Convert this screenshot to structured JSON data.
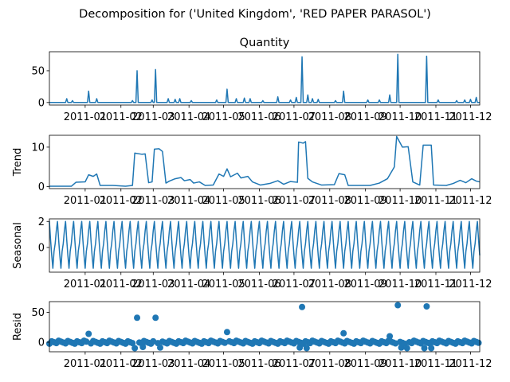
{
  "figure": {
    "suptitle": "Decomposition for ('United Kingdom', 'RED PAPER PARASOL')"
  },
  "colors": {
    "line": "#1f77b4",
    "axis": "#000000"
  },
  "chart_data": [
    {
      "type": "line",
      "name": "observed",
      "title": "Quantity",
      "ylabel": "",
      "x_range": [
        "2010-12-01",
        "2011-12-09"
      ],
      "ylim": [
        -4,
        80
      ],
      "yticks": [
        0,
        50
      ],
      "xticks": [
        "2011-01",
        "2011-02",
        "2011-03",
        "2011-04",
        "2011-05",
        "2011-06",
        "2011-07",
        "2011-08",
        "2011-09",
        "2011-10",
        "2011-11",
        "2011-12"
      ],
      "baseline": 0,
      "spikes": [
        {
          "x": "2010-12-16",
          "y": 6
        },
        {
          "x": "2010-12-21",
          "y": 3
        },
        {
          "x": "2011-01-04",
          "y": 18
        },
        {
          "x": "2011-01-11",
          "y": 6
        },
        {
          "x": "2011-02-11",
          "y": 3
        },
        {
          "x": "2011-02-15",
          "y": 50
        },
        {
          "x": "2011-02-28",
          "y": 4
        },
        {
          "x": "2011-03-03",
          "y": 52
        },
        {
          "x": "2011-03-14",
          "y": 6
        },
        {
          "x": "2011-03-20",
          "y": 5
        },
        {
          "x": "2011-03-24",
          "y": 6
        },
        {
          "x": "2011-04-03",
          "y": 3
        },
        {
          "x": "2011-04-25",
          "y": 4
        },
        {
          "x": "2011-05-04",
          "y": 21
        },
        {
          "x": "2011-05-12",
          "y": 6
        },
        {
          "x": "2011-05-19",
          "y": 7
        },
        {
          "x": "2011-05-24",
          "y": 6
        },
        {
          "x": "2011-06-04",
          "y": 3
        },
        {
          "x": "2011-06-17",
          "y": 9
        },
        {
          "x": "2011-06-28",
          "y": 4
        },
        {
          "x": "2011-07-03",
          "y": 8
        },
        {
          "x": "2011-07-08",
          "y": 72
        },
        {
          "x": "2011-07-13",
          "y": 12
        },
        {
          "x": "2011-07-17",
          "y": 6
        },
        {
          "x": "2011-07-22",
          "y": 5
        },
        {
          "x": "2011-08-06",
          "y": 3
        },
        {
          "x": "2011-08-13",
          "y": 18
        },
        {
          "x": "2011-09-03",
          "y": 4
        },
        {
          "x": "2011-09-13",
          "y": 4
        },
        {
          "x": "2011-09-22",
          "y": 12
        },
        {
          "x": "2011-09-29",
          "y": 76
        },
        {
          "x": "2011-10-24",
          "y": 73
        },
        {
          "x": "2011-11-03",
          "y": 4
        },
        {
          "x": "2011-11-19",
          "y": 3
        },
        {
          "x": "2011-11-26",
          "y": 4
        },
        {
          "x": "2011-12-01",
          "y": 5
        },
        {
          "x": "2011-12-06",
          "y": 8
        }
      ]
    },
    {
      "type": "line",
      "name": "trend",
      "title": "",
      "ylabel": "Trend",
      "x_range": [
        "2010-12-01",
        "2011-12-09"
      ],
      "ylim": [
        -0.5,
        13
      ],
      "yticks": [
        0,
        10
      ],
      "xticks": [
        "2011-01",
        "2011-02",
        "2011-03",
        "2011-04",
        "2011-05",
        "2011-06",
        "2011-07",
        "2011-08",
        "2011-09",
        "2011-10",
        "2011-11",
        "2011-12"
      ],
      "points": [
        {
          "x": "2010-12-01",
          "y": 0.1
        },
        {
          "x": "2010-12-20",
          "y": 0.1
        },
        {
          "x": "2010-12-24",
          "y": 1.1
        },
        {
          "x": "2011-01-01",
          "y": 1.2
        },
        {
          "x": "2011-01-04",
          "y": 3.0
        },
        {
          "x": "2011-01-08",
          "y": 2.6
        },
        {
          "x": "2011-01-11",
          "y": 3.2
        },
        {
          "x": "2011-01-14",
          "y": 0.3
        },
        {
          "x": "2011-01-25",
          "y": 0.3
        },
        {
          "x": "2011-02-05",
          "y": 0.1
        },
        {
          "x": "2011-02-11",
          "y": 0.3
        },
        {
          "x": "2011-02-13",
          "y": 8.5
        },
        {
          "x": "2011-02-19",
          "y": 8.2
        },
        {
          "x": "2011-02-22",
          "y": 8.3
        },
        {
          "x": "2011-02-25",
          "y": 1.0
        },
        {
          "x": "2011-02-28",
          "y": 1.2
        },
        {
          "x": "2011-03-02",
          "y": 9.5
        },
        {
          "x": "2011-03-06",
          "y": 9.6
        },
        {
          "x": "2011-03-09",
          "y": 8.9
        },
        {
          "x": "2011-03-12",
          "y": 0.9
        },
        {
          "x": "2011-03-15",
          "y": 1.4
        },
        {
          "x": "2011-03-20",
          "y": 2.0
        },
        {
          "x": "2011-03-25",
          "y": 2.3
        },
        {
          "x": "2011-03-28",
          "y": 1.5
        },
        {
          "x": "2011-04-02",
          "y": 1.8
        },
        {
          "x": "2011-04-05",
          "y": 0.9
        },
        {
          "x": "2011-04-10",
          "y": 1.2
        },
        {
          "x": "2011-04-15",
          "y": 0.3
        },
        {
          "x": "2011-04-22",
          "y": 0.4
        },
        {
          "x": "2011-04-27",
          "y": 3.2
        },
        {
          "x": "2011-05-01",
          "y": 2.6
        },
        {
          "x": "2011-05-04",
          "y": 4.5
        },
        {
          "x": "2011-05-07",
          "y": 2.5
        },
        {
          "x": "2011-05-13",
          "y": 3.4
        },
        {
          "x": "2011-05-16",
          "y": 2.2
        },
        {
          "x": "2011-05-22",
          "y": 2.6
        },
        {
          "x": "2011-05-26",
          "y": 1.2
        },
        {
          "x": "2011-06-02",
          "y": 0.4
        },
        {
          "x": "2011-06-10",
          "y": 0.8
        },
        {
          "x": "2011-06-17",
          "y": 1.5
        },
        {
          "x": "2011-06-22",
          "y": 0.6
        },
        {
          "x": "2011-06-28",
          "y": 1.3
        },
        {
          "x": "2011-07-04",
          "y": 1.1
        },
        {
          "x": "2011-07-05",
          "y": 11.3
        },
        {
          "x": "2011-07-09",
          "y": 11.0
        },
        {
          "x": "2011-07-11",
          "y": 11.4
        },
        {
          "x": "2011-07-13",
          "y": 2.1
        },
        {
          "x": "2011-07-17",
          "y": 1.2
        },
        {
          "x": "2011-07-25",
          "y": 0.4
        },
        {
          "x": "2011-08-05",
          "y": 0.5
        },
        {
          "x": "2011-08-09",
          "y": 3.3
        },
        {
          "x": "2011-08-14",
          "y": 3.0
        },
        {
          "x": "2011-08-17",
          "y": 0.3
        },
        {
          "x": "2011-09-05",
          "y": 0.3
        },
        {
          "x": "2011-09-13",
          "y": 0.9
        },
        {
          "x": "2011-09-20",
          "y": 2.0
        },
        {
          "x": "2011-09-26",
          "y": 5.0
        },
        {
          "x": "2011-09-28",
          "y": 12.7
        },
        {
          "x": "2011-10-03",
          "y": 10.0
        },
        {
          "x": "2011-10-08",
          "y": 10.1
        },
        {
          "x": "2011-10-12",
          "y": 1.2
        },
        {
          "x": "2011-10-18",
          "y": 0.4
        },
        {
          "x": "2011-10-21",
          "y": 10.5
        },
        {
          "x": "2011-10-28",
          "y": 10.5
        },
        {
          "x": "2011-10-30",
          "y": 0.4
        },
        {
          "x": "2011-11-10",
          "y": 0.3
        },
        {
          "x": "2011-11-16",
          "y": 0.8
        },
        {
          "x": "2011-11-22",
          "y": 1.6
        },
        {
          "x": "2011-11-27",
          "y": 1.0
        },
        {
          "x": "2011-12-02",
          "y": 2.0
        },
        {
          "x": "2011-12-06",
          "y": 1.4
        },
        {
          "x": "2011-12-09",
          "y": 1.2
        }
      ]
    },
    {
      "type": "line",
      "name": "seasonal",
      "title": "",
      "ylabel": "Seasonal",
      "x_range": [
        "2010-12-01",
        "2011-12-09"
      ],
      "ylim": [
        -1.9,
        2.2
      ],
      "yticks": [
        0,
        2
      ],
      "xticks": [
        "2011-01",
        "2011-02",
        "2011-03",
        "2011-04",
        "2011-05",
        "2011-06",
        "2011-07",
        "2011-08",
        "2011-09",
        "2011-10",
        "2011-11",
        "2011-12"
      ],
      "period_days": 7,
      "cycle": [
        2.0,
        0.6,
        -0.6,
        -1.6,
        -0.3,
        0.3,
        1.3
      ]
    },
    {
      "type": "scatter",
      "name": "resid",
      "title": "",
      "ylabel": "Resid",
      "x_range": [
        "2010-12-01",
        "2011-12-09"
      ],
      "ylim": [
        -16,
        68
      ],
      "yticks": [
        0,
        50
      ],
      "xticks": [
        "2011-01",
        "2011-02",
        "2011-03",
        "2011-04",
        "2011-05",
        "2011-06",
        "2011-07",
        "2011-08",
        "2011-09",
        "2011-10",
        "2011-11",
        "2011-12"
      ],
      "baseline": 0,
      "outliers": [
        {
          "x": "2011-01-04",
          "y": 14
        },
        {
          "x": "2011-02-15",
          "y": 41
        },
        {
          "x": "2011-03-03",
          "y": 41
        },
        {
          "x": "2011-05-04",
          "y": 17
        },
        {
          "x": "2011-07-08",
          "y": 59
        },
        {
          "x": "2011-08-13",
          "y": 15
        },
        {
          "x": "2011-09-22",
          "y": 10
        },
        {
          "x": "2011-09-29",
          "y": 62
        },
        {
          "x": "2011-10-24",
          "y": 60
        },
        {
          "x": "2011-02-13",
          "y": -10
        },
        {
          "x": "2011-02-20",
          "y": -8
        },
        {
          "x": "2011-03-07",
          "y": -9
        },
        {
          "x": "2011-07-06",
          "y": -9
        },
        {
          "x": "2011-07-12",
          "y": -10
        },
        {
          "x": "2011-10-02",
          "y": -9
        },
        {
          "x": "2011-10-07",
          "y": -10
        },
        {
          "x": "2011-10-22",
          "y": -10
        },
        {
          "x": "2011-10-28",
          "y": -10
        }
      ]
    }
  ]
}
